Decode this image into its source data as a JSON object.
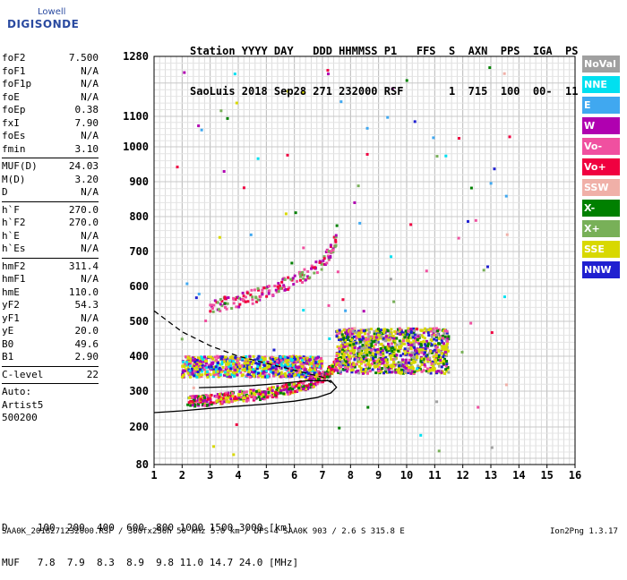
{
  "logo": {
    "line1": "Lowell",
    "line2": "DIGISONDE"
  },
  "header": {
    "labels": "Station YYYY DAY   DDD HHMMSS P1   FFS  S  AXN  PPS  IGA  PS",
    "values": "SaoLuis 2018 Sep28 271 232000 RSF       1  715  100  00-  11"
  },
  "params": [
    [
      [
        "foF2",
        "7.500"
      ],
      [
        "foF1",
        "N/A"
      ],
      [
        "foF1p",
        "N/A"
      ],
      [
        "foE",
        "N/A"
      ],
      [
        "foEp",
        "0.38"
      ],
      [
        "fxI",
        "7.90"
      ],
      [
        "foEs",
        "N/A"
      ],
      [
        "fmin",
        "3.10"
      ]
    ],
    [
      [
        "MUF(D)",
        "24.03"
      ],
      [
        "M(D)",
        "3.20"
      ],
      [
        "D",
        "N/A"
      ]
    ],
    [
      [
        "h`F",
        "270.0"
      ],
      [
        "h`F2",
        "270.0"
      ],
      [
        "h`E",
        "N/A"
      ],
      [
        "h`Es",
        "N/A"
      ]
    ],
    [
      [
        "hmF2",
        "311.4"
      ],
      [
        "hmF1",
        "N/A"
      ],
      [
        "hmE",
        "110.0"
      ],
      [
        "yF2",
        "54.3"
      ],
      [
        "yF1",
        "N/A"
      ],
      [
        "yE",
        "20.0"
      ],
      [
        "B0",
        "49.6"
      ],
      [
        "B1",
        "2.90"
      ]
    ],
    [
      [
        "C-level",
        "22"
      ]
    ]
  ],
  "auto": [
    "Auto:",
    "Artist5",
    "500200"
  ],
  "legend": [
    {
      "label": "NoVal",
      "color": "#a0a0a0"
    },
    {
      "label": "NNE",
      "color": "#00e0f0"
    },
    {
      "label": "E",
      "color": "#40a8f0"
    },
    {
      "label": "W",
      "color": "#b000b0"
    },
    {
      "label": "Vo-",
      "color": "#f050a0"
    },
    {
      "label": "Vo+",
      "color": "#f00040"
    },
    {
      "label": "SSW",
      "color": "#f0b0a8"
    },
    {
      "label": "X-",
      "color": "#008000"
    },
    {
      "label": "X+",
      "color": "#78b058"
    },
    {
      "label": "SSE",
      "color": "#d8d800"
    },
    {
      "label": "NNW",
      "color": "#2020d0"
    }
  ],
  "muf_table": {
    "row1": "D     100  200  400  600  800 1000 1500 3000 [km]",
    "row2": "MUF   7.8  7.9  8.3  8.9  9.8 11.0 14.7 24.0 [MHz]"
  },
  "footer": "SAA0K_2018271232000.RSF / 300fx256h 50 kHz 5.0 km / DPS-4 SAA0K 903 / 2.6 S 315.8 E",
  "footer_right": "Ion2Png 1.3.17",
  "chart_data": {
    "type": "scatter",
    "xlim": [
      1,
      16
    ],
    "ylim": [
      80,
      1280
    ],
    "x_ticks": [
      1,
      2,
      3,
      4,
      5,
      6,
      7,
      8,
      9,
      10,
      11,
      12,
      13,
      14,
      15,
      16
    ],
    "y_ticks": [
      80,
      200,
      300,
      400,
      500,
      600,
      700,
      800,
      900,
      1000,
      1100,
      1280
    ],
    "grid": true,
    "ordinary_trace": {
      "x": [
        2.2,
        2.6,
        3.0,
        3.5,
        4.0,
        4.5,
        5.0,
        5.5,
        6.0,
        6.5,
        7.0,
        7.3,
        7.5
      ],
      "y": [
        270,
        272,
        275,
        280,
        285,
        288,
        292,
        300,
        310,
        320,
        340,
        360,
        380
      ]
    },
    "second_hop_trace": {
      "x": [
        3.0,
        3.5,
        4.0,
        4.5,
        5.0,
        5.5,
        6.0,
        6.5,
        7.0,
        7.3,
        7.5
      ],
      "y": [
        540,
        550,
        560,
        570,
        585,
        600,
        615,
        640,
        670,
        700,
        740
      ]
    },
    "diffuse_region": {
      "x": [
        7.5,
        11.5
      ],
      "y": [
        350,
        480
      ]
    },
    "es_band": {
      "x": [
        2.0,
        7.0
      ],
      "y": [
        340,
        400
      ]
    },
    "profile_solid": {
      "x": [
        1.0,
        2.0,
        3.0,
        4.0,
        5.0,
        6.0,
        6.8,
        7.3,
        7.5,
        7.3,
        6.5,
        5.5,
        4.5,
        3.5,
        2.6
      ],
      "y": [
        240,
        245,
        252,
        258,
        264,
        272,
        282,
        295,
        311,
        330,
        330,
        322,
        316,
        312,
        310
      ]
    },
    "profile_dashed": {
      "x": [
        1.0,
        2.0,
        3.0,
        4.0,
        5.0,
        6.0,
        7.0,
        7.4
      ],
      "y": [
        530,
        470,
        430,
        400,
        380,
        360,
        340,
        320
      ]
    }
  }
}
